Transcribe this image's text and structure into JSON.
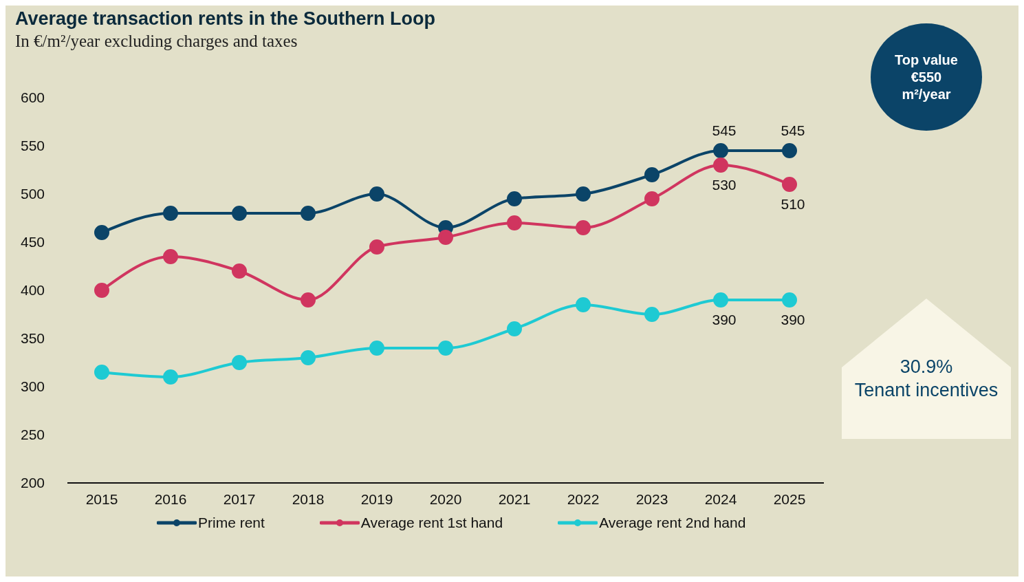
{
  "chart_data": {
    "type": "line",
    "title": "Average transaction rents in the Southern Loop",
    "subtitle": "In €/m²/year excluding charges and taxes",
    "categories": [
      "2015",
      "2016",
      "2017",
      "2018",
      "2019",
      "2020",
      "2021",
      "2022",
      "2023",
      "2024",
      "2025"
    ],
    "series": [
      {
        "name": "Prime rent",
        "color": "#0b4468",
        "values": [
          460,
          480,
          480,
          480,
          500,
          465,
          495,
          500,
          520,
          545,
          545
        ],
        "value_labels": [
          null,
          null,
          null,
          null,
          null,
          null,
          null,
          null,
          null,
          "545",
          "545"
        ]
      },
      {
        "name": "Average rent 1st hand",
        "color": "#d0355f",
        "values": [
          400,
          435,
          420,
          390,
          445,
          455,
          470,
          465,
          495,
          530,
          510
        ],
        "value_labels": [
          null,
          null,
          null,
          null,
          null,
          null,
          null,
          null,
          null,
          "530",
          "510"
        ]
      },
      {
        "name": "Average rent 2nd hand",
        "color": "#1ecad3",
        "values": [
          315,
          310,
          325,
          330,
          340,
          340,
          360,
          385,
          375,
          390,
          390
        ],
        "value_labels": [
          null,
          null,
          null,
          null,
          null,
          null,
          null,
          null,
          null,
          "390",
          "390"
        ]
      }
    ],
    "ylim": [
      200,
      600
    ],
    "yticks": [
      200,
      250,
      300,
      350,
      400,
      450,
      500,
      550,
      600
    ],
    "grid": false,
    "legend": "bottom",
    "marker": "circle",
    "line_style": "solid",
    "annotations": [
      "Top value\n€550\nm²/year",
      "30.9%\nTenant incentives"
    ]
  }
}
